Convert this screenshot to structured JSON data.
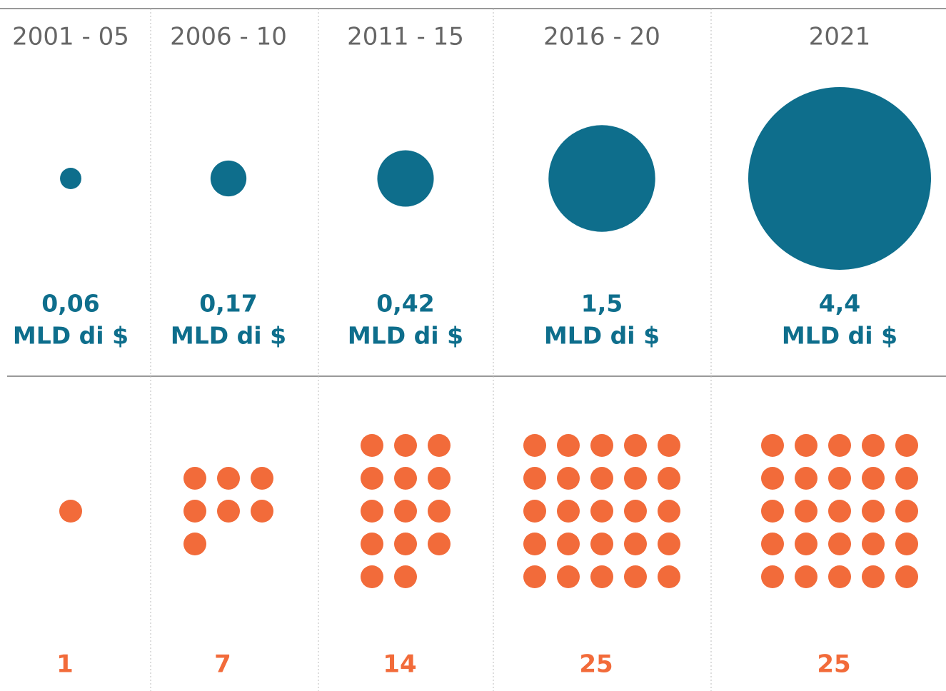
{
  "chart_data": {
    "type": "bubble",
    "categories": [
      "2001 - 05",
      "2006 - 10",
      "2011 - 15",
      "2016 - 20",
      "2021"
    ],
    "values": [
      0.06,
      0.17,
      0.42,
      1.5,
      4.4
    ],
    "value_labels": [
      "0,06",
      "0,17",
      "0,42",
      "1,5",
      "4,4"
    ],
    "unit": "MLD di $",
    "color": "#0e6e8c",
    "counts": [
      1,
      7,
      14,
      25,
      25
    ],
    "count_color": "#f26b3a"
  }
}
